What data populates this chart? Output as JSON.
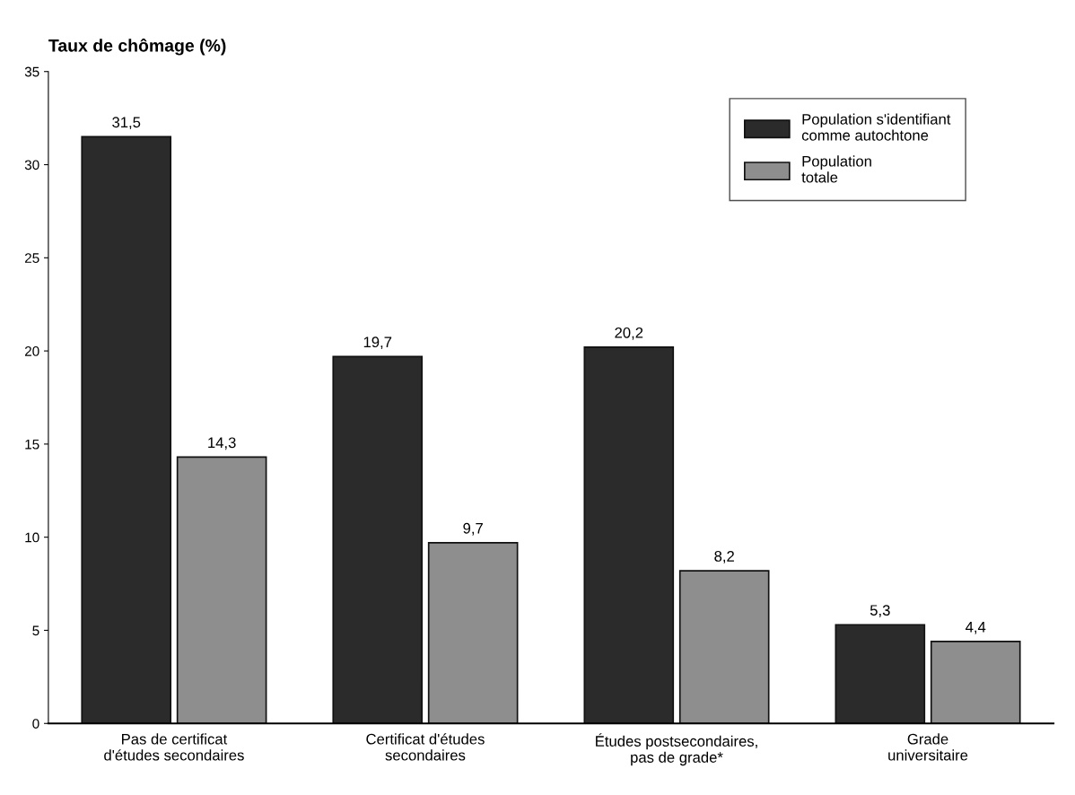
{
  "chart_data": {
    "type": "bar",
    "ylabel": "Taux de chômage (%)",
    "categories": [
      "Pas de certificat\nd'études secondaires",
      "Certificat d'études\nsecondaires",
      "Études postsecondaires,\npas de grade*",
      "Grade\nuniversitaire"
    ],
    "series": [
      {
        "name": "Population s'identifiant\ncomme autochtone",
        "color": "#2b2b2b",
        "values": [
          31.5,
          19.7,
          20.2,
          5.3
        ],
        "value_labels": [
          "31,5",
          "19,7",
          "20,2",
          "5,3"
        ]
      },
      {
        "name": "Population\ntotale",
        "color": "#8e8e8e",
        "values": [
          14.3,
          9.7,
          8.2,
          4.4
        ],
        "value_labels": [
          "14,3",
          "9,7",
          "8,2",
          "4,4"
        ]
      }
    ],
    "ylim": [
      0,
      35
    ],
    "yticks": [
      0,
      5,
      10,
      15,
      20,
      25,
      30,
      35
    ],
    "grid": false,
    "legend": "top right"
  }
}
